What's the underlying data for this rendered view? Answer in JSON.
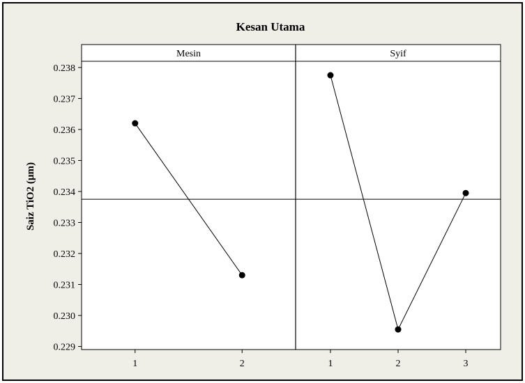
{
  "colors": {
    "background": "#f0efe7",
    "plot_background": "#ffffff",
    "outer_border": "#000000",
    "line": "#000000",
    "marker": "#000000"
  },
  "chart_data": {
    "type": "line",
    "title": "Kesan Utama",
    "ylabel": "Saiz TiO2 (µm)",
    "xlabel": "",
    "ylim": [
      0.2289,
      0.2382
    ],
    "y_ticks": [
      "0.229",
      "0.230",
      "0.231",
      "0.232",
      "0.233",
      "0.234",
      "0.235",
      "0.236",
      "0.237",
      "0.238"
    ],
    "grand_mean": 0.23375,
    "grid": false,
    "panels": [
      {
        "name": "Mesin",
        "categories": [
          "1",
          "2"
        ],
        "values": [
          0.2362,
          0.2313
        ]
      },
      {
        "name": "Syif",
        "categories": [
          "1",
          "2",
          "3"
        ],
        "values": [
          0.23775,
          0.22955,
          0.23395
        ]
      }
    ]
  }
}
